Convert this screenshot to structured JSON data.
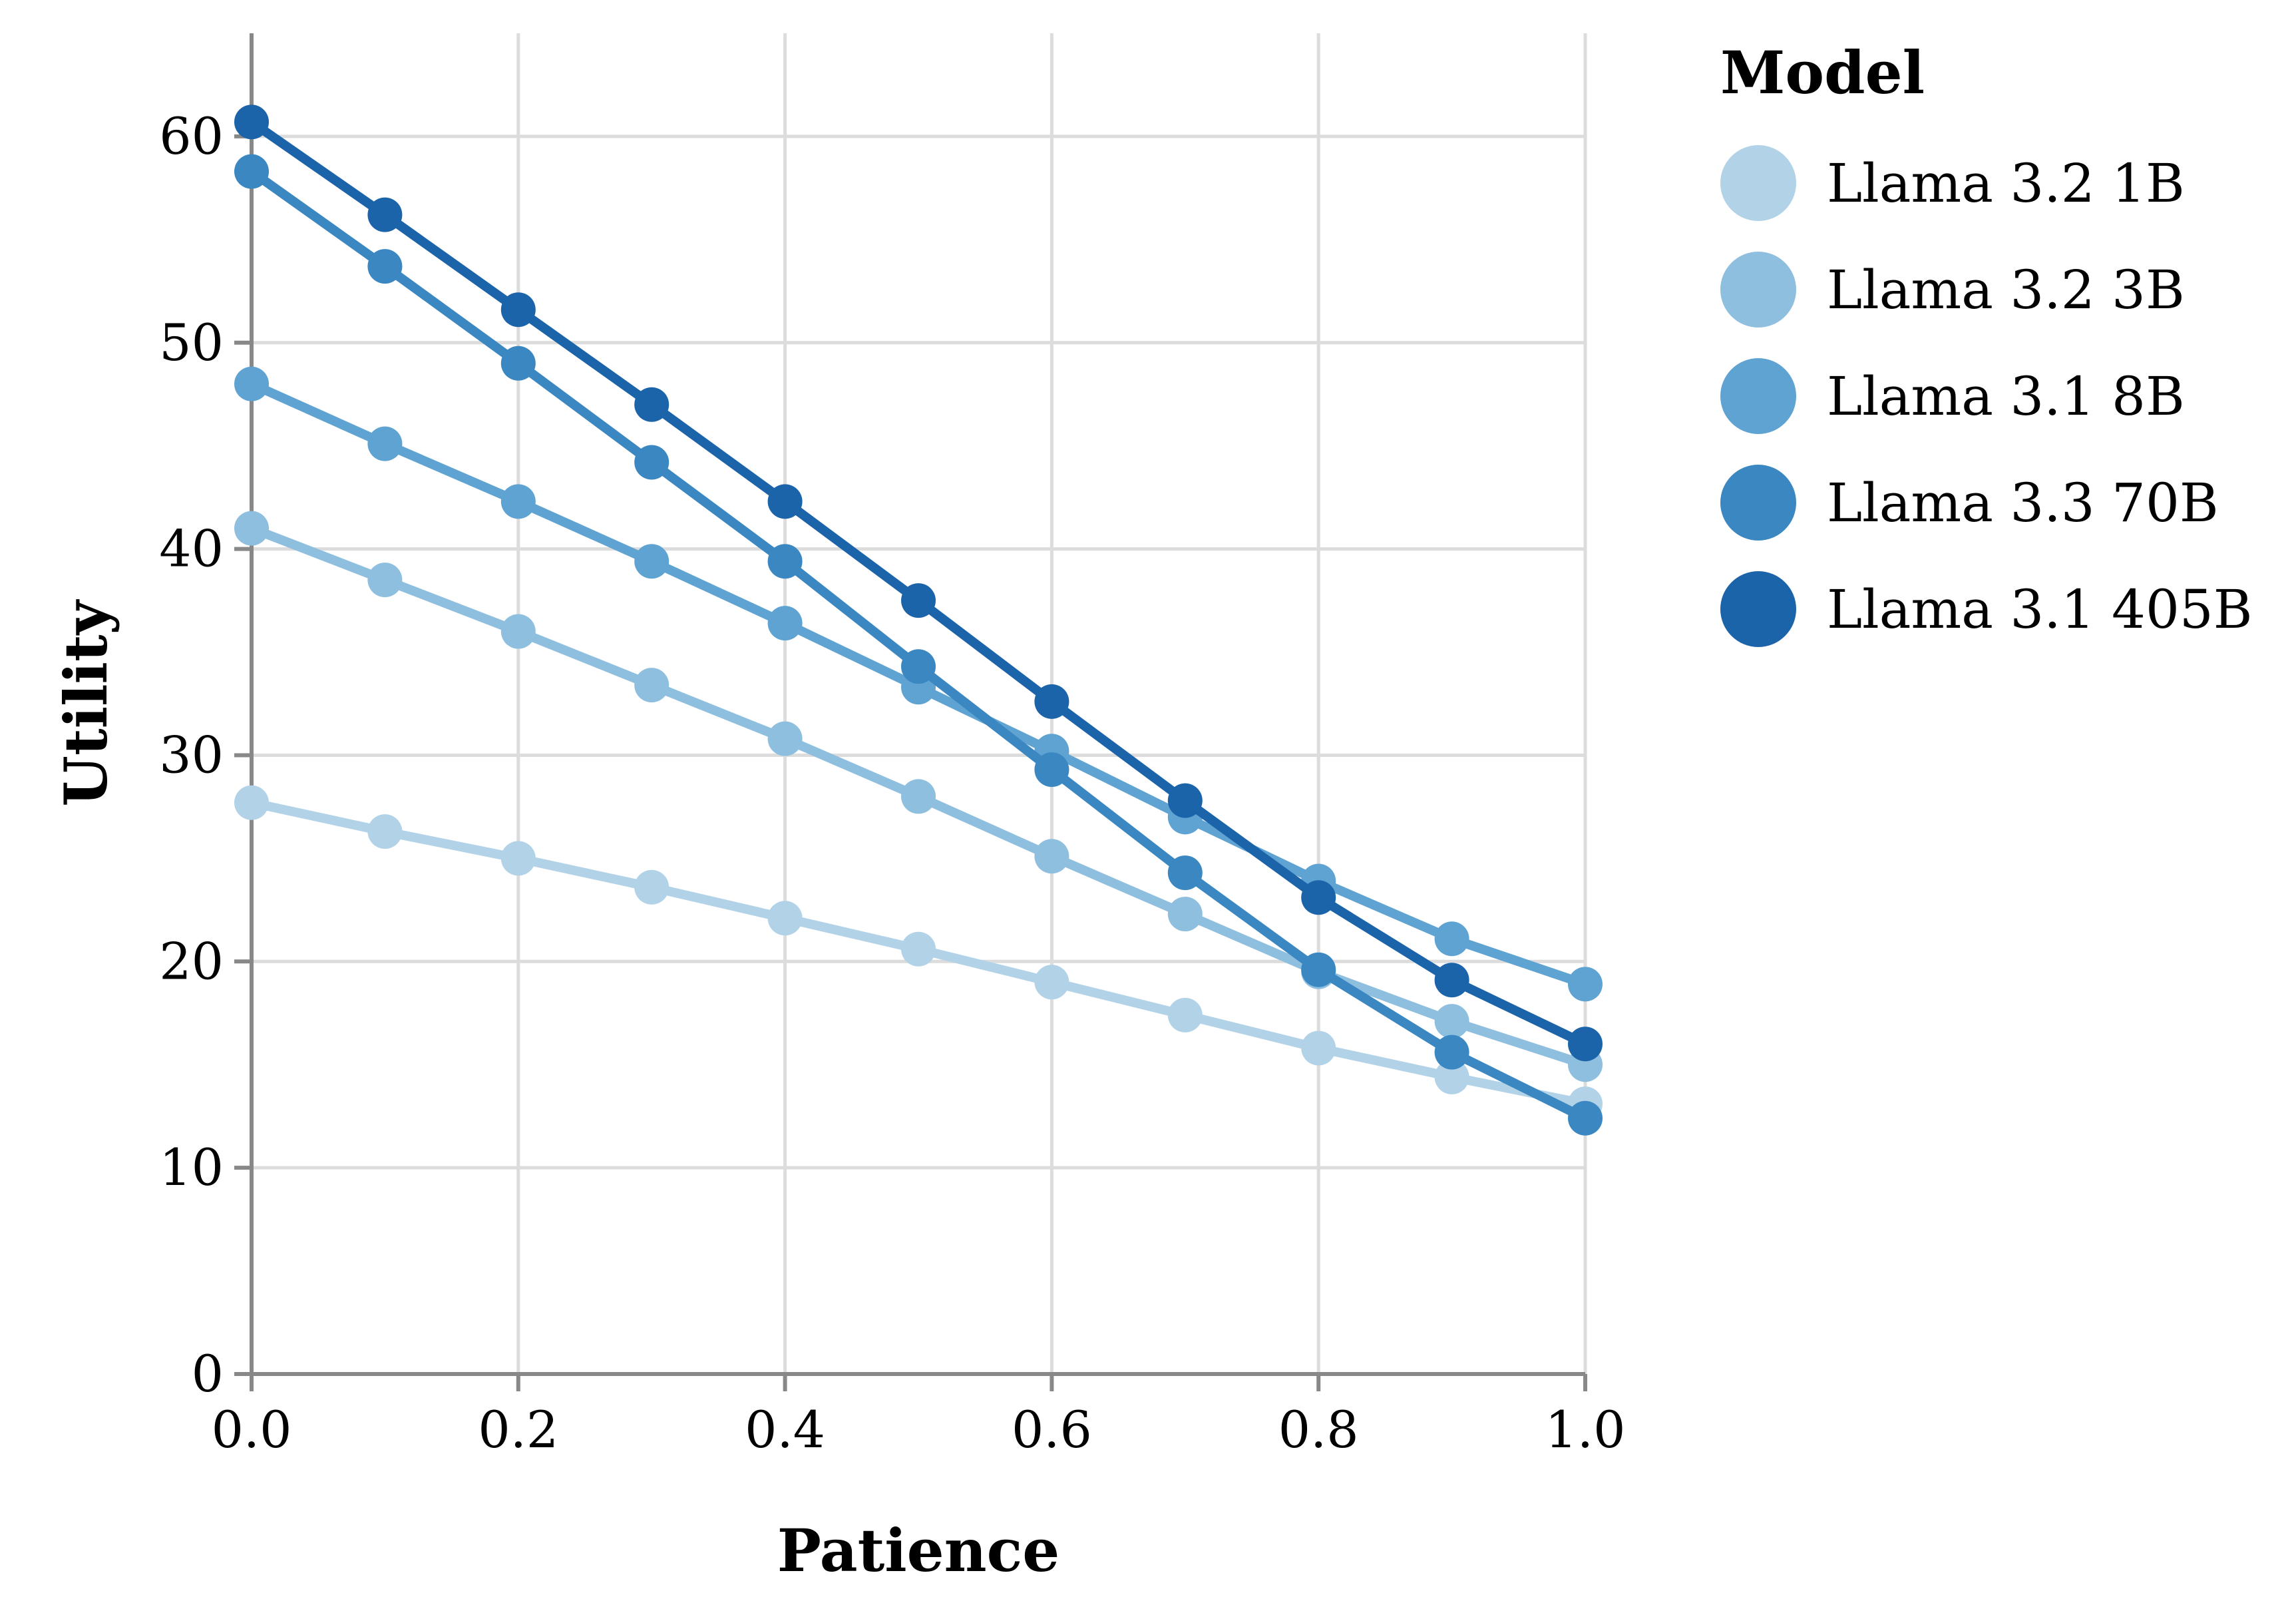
{
  "chart_data": {
    "type": "line",
    "xlabel": "Patience",
    "ylabel": "Utility",
    "xlim": [
      0,
      1
    ],
    "ylim": [
      0,
      65
    ],
    "x_ticks": [
      "0.0",
      "0.2",
      "0.4",
      "0.6",
      "0.8",
      "1.0"
    ],
    "y_ticks": [
      "0",
      "10",
      "20",
      "30",
      "40",
      "50",
      "60"
    ],
    "grid": true,
    "legend": {
      "title": "Model",
      "placement": "right"
    },
    "x": [
      0.0,
      0.1,
      0.2,
      0.3,
      0.4,
      0.5,
      0.6,
      0.7,
      0.8,
      0.9,
      1.0
    ],
    "series": [
      {
        "name": "Llama 3.2 1B",
        "color": "#b2d2e8",
        "values": [
          27.7,
          26.3,
          25.0,
          23.6,
          22.1,
          20.6,
          19.0,
          17.4,
          15.8,
          14.4,
          13.1
        ]
      },
      {
        "name": "Llama 3.2 3B",
        "color": "#8fbfdf",
        "values": [
          41.0,
          38.5,
          36.0,
          33.4,
          30.8,
          28.0,
          25.1,
          22.3,
          19.5,
          17.1,
          15.0
        ]
      },
      {
        "name": "Llama 3.1 8B",
        "color": "#5ea3d2",
        "values": [
          48.0,
          45.1,
          42.3,
          39.4,
          36.4,
          33.3,
          30.2,
          27.0,
          23.9,
          21.1,
          18.9
        ]
      },
      {
        "name": "Llama 3.3 70B",
        "color": "#3a87c2",
        "values": [
          58.3,
          53.7,
          49.0,
          44.2,
          39.4,
          34.3,
          29.3,
          24.3,
          19.6,
          15.6,
          12.4
        ]
      },
      {
        "name": "Llama 3.1 405B",
        "color": "#1c64aa",
        "values": [
          60.7,
          56.2,
          51.6,
          47.0,
          42.3,
          37.5,
          32.6,
          27.8,
          23.1,
          19.1,
          16.0
        ]
      }
    ]
  }
}
